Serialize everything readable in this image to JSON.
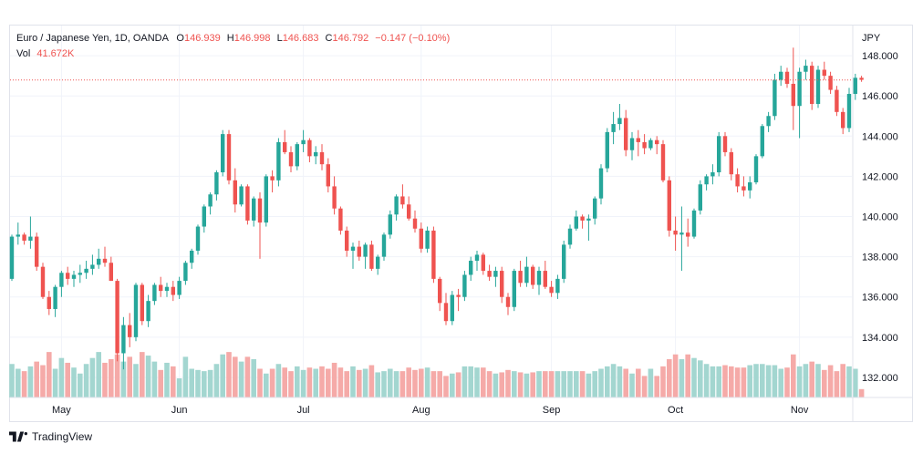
{
  "legend": {
    "symbol": "Euro / Japanese Yen, 1D, OANDA",
    "o_label": "O",
    "o_value": "146.939",
    "h_label": "H",
    "h_value": "146.998",
    "l_label": "L",
    "l_value": "146.683",
    "c_label": "C",
    "c_value": "146.792",
    "change": "−0.147 (−0.10%)",
    "vol_label": "Vol",
    "vol_value": "41.672K"
  },
  "brand": {
    "name": "TradingView"
  },
  "colors": {
    "up": "#26a69a",
    "down": "#ef5350",
    "up_vol": "#a3d6d0",
    "down_vol": "#f5aaa8",
    "grid": "#f0f3fa",
    "axis_text": "#131722",
    "last_price_line": "#ef5350"
  },
  "chart_data": {
    "type": "candlestick",
    "currency_label": "JPY",
    "y_ticks": [
      "148.000",
      "146.000",
      "144.000",
      "142.000",
      "140.000",
      "138.000",
      "136.000",
      "134.000",
      "132.000"
    ],
    "ylim": [
      131.0,
      149.5
    ],
    "x_ticks": [
      {
        "label": "May",
        "index": 8
      },
      {
        "label": "Jun",
        "index": 27
      },
      {
        "label": "Jul",
        "index": 47
      },
      {
        "label": "Aug",
        "index": 66
      },
      {
        "label": "Sep",
        "index": 87
      },
      {
        "label": "Oct",
        "index": 107
      },
      {
        "label": "Nov",
        "index": 127
      }
    ],
    "last_price": 146.792,
    "volume_lim": [
      0,
      80
    ],
    "candles": [
      [
        136.9,
        139.1,
        136.8,
        139.0,
        28
      ],
      [
        139.0,
        139.7,
        138.6,
        139.1,
        24
      ],
      [
        139.1,
        139.2,
        138.6,
        138.8,
        22
      ],
      [
        138.8,
        140.0,
        138.4,
        139.0,
        26
      ],
      [
        139.0,
        139.2,
        137.3,
        137.5,
        30
      ],
      [
        137.5,
        137.7,
        135.9,
        136.0,
        27
      ],
      [
        136.0,
        136.3,
        135.1,
        135.4,
        38
      ],
      [
        135.4,
        136.6,
        135.0,
        136.5,
        24
      ],
      [
        136.5,
        137.3,
        136.0,
        137.2,
        33
      ],
      [
        137.2,
        137.5,
        136.6,
        136.9,
        29
      ],
      [
        136.9,
        137.3,
        136.5,
        137.1,
        25
      ],
      [
        137.1,
        137.6,
        136.7,
        137.2,
        20
      ],
      [
        137.2,
        137.8,
        136.9,
        137.4,
        28
      ],
      [
        137.4,
        138.1,
        137.1,
        137.6,
        33
      ],
      [
        137.6,
        138.4,
        137.4,
        137.9,
        38
      ],
      [
        137.9,
        138.5,
        137.5,
        137.7,
        29
      ],
      [
        137.7,
        138.0,
        136.8,
        136.8,
        32
      ],
      [
        136.8,
        136.9,
        132.8,
        133.2,
        36
      ],
      [
        133.2,
        135.0,
        132.4,
        134.6,
        30
      ],
      [
        134.6,
        135.2,
        133.5,
        134.0,
        34
      ],
      [
        134.0,
        136.7,
        133.8,
        136.6,
        28
      ],
      [
        136.6,
        136.7,
        134.6,
        134.8,
        38
      ],
      [
        134.8,
        136.1,
        134.5,
        135.8,
        35
      ],
      [
        135.8,
        136.7,
        135.6,
        136.6,
        30
      ],
      [
        136.6,
        137.0,
        136.0,
        136.3,
        23
      ],
      [
        136.3,
        136.7,
        136.0,
        136.5,
        29
      ],
      [
        136.5,
        136.8,
        135.8,
        136.1,
        26
      ],
      [
        136.1,
        137.0,
        135.9,
        136.8,
        16
      ],
      [
        136.8,
        137.8,
        136.6,
        137.7,
        34
      ],
      [
        137.7,
        138.4,
        137.4,
        138.3,
        24
      ],
      [
        138.3,
        139.6,
        138.1,
        139.5,
        23
      ],
      [
        139.5,
        140.6,
        139.2,
        140.5,
        22
      ],
      [
        140.5,
        141.2,
        140.1,
        141.1,
        23
      ],
      [
        141.1,
        142.3,
        140.8,
        142.2,
        28
      ],
      [
        142.2,
        144.3,
        142.0,
        144.1,
        36
      ],
      [
        144.1,
        144.3,
        141.6,
        141.8,
        38
      ],
      [
        141.8,
        142.4,
        140.2,
        140.6,
        34
      ],
      [
        140.6,
        141.6,
        140.5,
        141.5,
        30
      ],
      [
        141.5,
        141.6,
        139.6,
        139.8,
        34
      ],
      [
        139.8,
        141.0,
        139.5,
        140.9,
        32
      ],
      [
        140.9,
        141.2,
        137.9,
        139.7,
        24
      ],
      [
        139.7,
        142.1,
        139.5,
        142.0,
        20
      ],
      [
        142.0,
        142.3,
        141.2,
        141.8,
        24
      ],
      [
        141.8,
        143.9,
        141.5,
        143.7,
        28
      ],
      [
        143.7,
        144.3,
        143.1,
        143.2,
        25
      ],
      [
        143.2,
        143.5,
        142.2,
        142.5,
        22
      ],
      [
        142.5,
        143.7,
        142.3,
        143.6,
        26
      ],
      [
        143.6,
        144.3,
        143.2,
        143.8,
        23
      ],
      [
        143.8,
        143.9,
        142.7,
        143.0,
        25
      ],
      [
        143.0,
        143.5,
        142.6,
        143.2,
        24
      ],
      [
        143.2,
        143.6,
        142.3,
        142.6,
        26
      ],
      [
        142.6,
        142.9,
        141.2,
        141.5,
        24
      ],
      [
        141.5,
        142.0,
        140.1,
        140.4,
        29
      ],
      [
        140.4,
        140.5,
        139.1,
        139.3,
        25
      ],
      [
        139.3,
        139.5,
        138.0,
        138.3,
        22
      ],
      [
        138.3,
        138.7,
        137.4,
        138.5,
        26
      ],
      [
        138.5,
        138.8,
        137.8,
        138.0,
        23
      ],
      [
        138.0,
        138.7,
        137.4,
        138.6,
        24
      ],
      [
        138.6,
        138.8,
        137.3,
        137.4,
        27
      ],
      [
        137.4,
        138.1,
        137.1,
        138.0,
        21
      ],
      [
        138.0,
        139.2,
        137.8,
        139.1,
        22
      ],
      [
        139.1,
        140.3,
        138.9,
        140.1,
        24
      ],
      [
        140.1,
        141.1,
        139.8,
        141.0,
        22
      ],
      [
        141.0,
        141.6,
        140.4,
        140.6,
        22
      ],
      [
        140.6,
        141.0,
        139.8,
        139.9,
        25
      ],
      [
        139.9,
        140.3,
        139.2,
        139.4,
        23
      ],
      [
        139.4,
        139.7,
        138.2,
        138.4,
        24
      ],
      [
        138.4,
        139.5,
        138.2,
        139.3,
        25
      ],
      [
        139.3,
        139.5,
        136.7,
        136.9,
        22
      ],
      [
        136.9,
        137.0,
        135.3,
        135.7,
        22
      ],
      [
        135.7,
        136.2,
        134.6,
        134.8,
        18
      ],
      [
        134.8,
        136.3,
        134.6,
        136.1,
        20
      ],
      [
        136.1,
        136.4,
        135.3,
        136.0,
        21
      ],
      [
        136.0,
        137.3,
        135.8,
        137.1,
        26
      ],
      [
        137.1,
        138.0,
        136.8,
        137.8,
        26
      ],
      [
        137.8,
        138.3,
        137.3,
        138.1,
        25
      ],
      [
        138.1,
        138.2,
        137.1,
        137.3,
        25
      ],
      [
        137.3,
        137.6,
        136.8,
        137.0,
        22
      ],
      [
        137.0,
        137.5,
        136.5,
        137.3,
        20
      ],
      [
        137.3,
        137.5,
        135.7,
        136.0,
        21
      ],
      [
        136.0,
        136.2,
        135.1,
        135.5,
        23
      ],
      [
        135.5,
        137.4,
        135.3,
        137.3,
        22
      ],
      [
        137.3,
        137.8,
        136.5,
        136.7,
        21
      ],
      [
        136.7,
        138.0,
        136.5,
        137.5,
        20
      ],
      [
        137.5,
        137.6,
        136.4,
        136.6,
        21
      ],
      [
        136.6,
        137.5,
        136.1,
        137.3,
        22
      ],
      [
        137.3,
        137.8,
        136.4,
        136.5,
        22
      ],
      [
        136.5,
        136.8,
        136.0,
        136.2,
        22
      ],
      [
        136.2,
        137.1,
        135.9,
        136.9,
        22
      ],
      [
        136.9,
        138.8,
        136.7,
        138.6,
        22
      ],
      [
        138.6,
        139.6,
        138.4,
        139.4,
        22
      ],
      [
        139.4,
        140.3,
        139.3,
        140.0,
        22
      ],
      [
        140.0,
        140.1,
        139.4,
        139.8,
        22
      ],
      [
        139.8,
        140.1,
        138.8,
        139.9,
        20
      ],
      [
        139.9,
        141.0,
        139.6,
        140.9,
        22
      ],
      [
        140.9,
        142.6,
        140.6,
        142.4,
        24
      ],
      [
        142.4,
        144.4,
        142.2,
        144.2,
        26
      ],
      [
        144.2,
        145.2,
        143.6,
        144.6,
        28
      ],
      [
        144.6,
        145.6,
        144.3,
        144.9,
        26
      ],
      [
        144.9,
        145.3,
        143.0,
        143.3,
        24
      ],
      [
        143.3,
        144.2,
        142.8,
        143.9,
        20
      ],
      [
        143.9,
        144.3,
        143.0,
        143.7,
        24
      ],
      [
        143.7,
        144.1,
        143.1,
        143.4,
        18
      ],
      [
        143.4,
        143.9,
        143.3,
        143.8,
        24
      ],
      [
        143.8,
        144.0,
        143.1,
        143.6,
        18
      ],
      [
        143.6,
        143.8,
        141.7,
        141.8,
        26
      ],
      [
        141.8,
        142.0,
        139.0,
        139.3,
        32
      ],
      [
        139.3,
        140.0,
        138.3,
        139.1,
        36
      ],
      [
        139.1,
        140.5,
        137.3,
        139.2,
        32
      ],
      [
        139.2,
        139.9,
        138.5,
        139.0,
        36
      ],
      [
        139.0,
        140.4,
        138.9,
        140.3,
        33
      ],
      [
        140.3,
        141.8,
        140.1,
        141.6,
        31
      ],
      [
        141.6,
        142.1,
        141.3,
        142.0,
        28
      ],
      [
        142.0,
        142.6,
        141.6,
        142.2,
        26
      ],
      [
        142.2,
        144.2,
        142.0,
        144.0,
        26
      ],
      [
        144.0,
        144.2,
        143.0,
        143.2,
        27
      ],
      [
        143.2,
        143.4,
        141.8,
        142.1,
        26
      ],
      [
        142.1,
        142.4,
        141.2,
        141.5,
        25
      ],
      [
        141.5,
        142.0,
        141.0,
        141.3,
        25
      ],
      [
        141.3,
        142.0,
        140.9,
        141.7,
        27
      ],
      [
        141.7,
        143.1,
        141.6,
        143.0,
        28
      ],
      [
        143.0,
        144.6,
        142.9,
        144.5,
        28
      ],
      [
        144.5,
        145.2,
        144.2,
        145.0,
        27
      ],
      [
        145.0,
        147.1,
        144.8,
        146.8,
        27
      ],
      [
        146.8,
        147.5,
        146.5,
        147.2,
        24
      ],
      [
        147.2,
        147.4,
        146.4,
        146.6,
        25
      ],
      [
        146.6,
        148.4,
        144.3,
        145.5,
        36
      ],
      [
        145.5,
        147.4,
        143.9,
        147.2,
        26
      ],
      [
        147.2,
        147.8,
        146.8,
        147.5,
        28
      ],
      [
        147.5,
        147.7,
        145.3,
        145.6,
        30
      ],
      [
        145.6,
        147.5,
        145.4,
        147.3,
        28
      ],
      [
        147.3,
        147.7,
        146.8,
        147.0,
        23
      ],
      [
        147.0,
        147.2,
        146.1,
        146.3,
        27
      ],
      [
        146.3,
        146.5,
        145.0,
        145.2,
        22
      ],
      [
        145.2,
        145.4,
        144.1,
        144.4,
        28
      ],
      [
        144.4,
        146.4,
        144.2,
        146.1,
        26
      ],
      [
        146.1,
        147.1,
        145.8,
        146.9,
        24
      ],
      [
        146.9,
        147.0,
        146.7,
        146.8,
        7
      ]
    ]
  }
}
